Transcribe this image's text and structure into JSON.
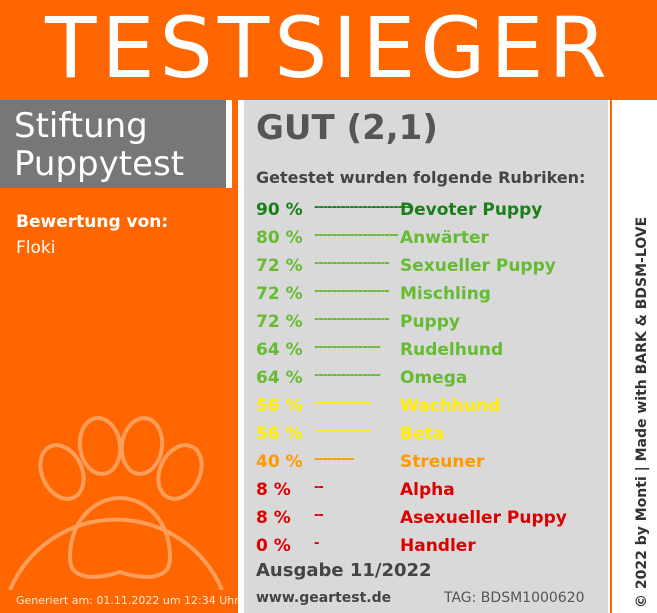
{
  "header": {
    "title": "TESTSIEGER"
  },
  "org": {
    "line1": "Stiftung",
    "line2": "Puppytest"
  },
  "rating": {
    "label": "Bewertung von:",
    "rater": "Floki"
  },
  "generated": "Generiert am: 01.11.2022 um 12:34 Uhr",
  "result": {
    "grade": "GUT (2,1)",
    "subtitle": "Getestet wurden folgende Rubriken:",
    "rows": [
      {
        "percent": "90 %",
        "dots": "----------------------",
        "name": "Devoter Puppy",
        "color": "#1a7f1a"
      },
      {
        "percent": "80 %",
        "dots": "-------------------",
        "name": "Anwärter",
        "color": "#66bb33"
      },
      {
        "percent": "72 %",
        "dots": "-----------------",
        "name": "Sexueller Puppy",
        "color": "#66bb33"
      },
      {
        "percent": "72 %",
        "dots": "-----------------",
        "name": "Mischling",
        "color": "#66bb33"
      },
      {
        "percent": "72 %",
        "dots": "-----------------",
        "name": "Puppy",
        "color": "#66bb33"
      },
      {
        "percent": "64 %",
        "dots": "---------------",
        "name": "Rudelhund",
        "color": "#66bb33"
      },
      {
        "percent": "64 %",
        "dots": "---------------",
        "name": "Omega",
        "color": "#66bb33"
      },
      {
        "percent": "56 %",
        "dots": "-------------",
        "name": "Wachhund",
        "color": "#ffee00"
      },
      {
        "percent": "56 %",
        "dots": "-------------",
        "name": "Beta",
        "color": "#ffee00"
      },
      {
        "percent": "40 %",
        "dots": "---------",
        "name": "Streuner",
        "color": "#ff9900"
      },
      {
        "percent": "8 %",
        "dots": "--",
        "name": "Alpha",
        "color": "#dd0000"
      },
      {
        "percent": "8 %",
        "dots": "--",
        "name": "Asexueller Puppy",
        "color": "#dd0000"
      },
      {
        "percent": "0 %",
        "dots": "-",
        "name": "Handler",
        "color": "#dd0000"
      }
    ],
    "issue": "Ausgabe 11/2022",
    "site": "www.geartest.de",
    "tag": "TAG: BDSM1000620"
  },
  "credit": "© 2022 by Monti | Made with BARK & BDSM-LOVE",
  "colors": {
    "brand": "#ff6600",
    "panel": "#d9d9d9",
    "org": "#777777"
  }
}
